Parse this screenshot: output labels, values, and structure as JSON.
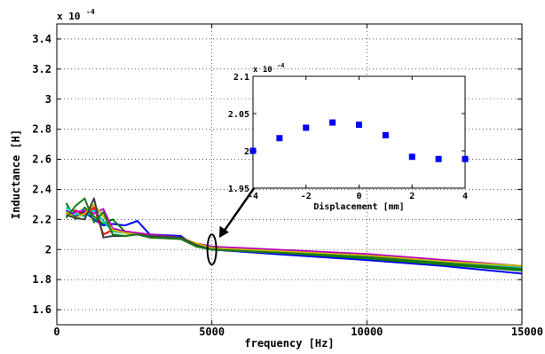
{
  "chart_data": [
    {
      "type": "line",
      "xlabel": "frequency [Hz]",
      "ylabel": "Inductance [H]",
      "exponent_label": "x 10",
      "exponent_power": "-4",
      "xlim": [
        0,
        15000
      ],
      "ylim": [
        1.5,
        3.5
      ],
      "xticks": [
        0,
        5000,
        10000,
        15000
      ],
      "xtick_labels": [
        "0",
        "5000",
        "10000",
        "15000"
      ],
      "yticks": [
        1.6,
        1.8,
        2.0,
        2.2,
        2.4,
        2.6,
        2.8,
        3.0,
        3.2,
        3.4
      ],
      "ytick_labels": [
        "1.6",
        "1.8",
        "2",
        "2.2",
        "2.4",
        "2.6",
        "2.8",
        "3",
        "3.2",
        "3.4"
      ],
      "grid": true,
      "series": [
        {
          "color": "#0000ff",
          "x": [
            300,
            600,
            900,
            1200,
            1500,
            1800,
            2200,
            2600,
            3000,
            4000,
            4500,
            5000,
            7000,
            10000,
            12500,
            15000
          ],
          "y": [
            2.26,
            2.22,
            2.25,
            2.2,
            2.16,
            2.17,
            2.16,
            2.19,
            2.1,
            2.09,
            2.02,
            2.0,
            1.97,
            1.93,
            1.89,
            1.84
          ]
        },
        {
          "color": "#008000",
          "x": [
            300,
            600,
            900,
            1200,
            1500,
            1800,
            2200,
            2600,
            3000,
            4000,
            4500,
            5000,
            7000,
            10000,
            12500,
            15000
          ],
          "y": [
            2.31,
            2.2,
            2.28,
            2.22,
            2.17,
            2.2,
            2.12,
            2.1,
            2.08,
            2.07,
            2.02,
            2.0,
            1.98,
            1.94,
            1.9,
            1.86
          ]
        },
        {
          "color": "#ff0000",
          "x": [
            300,
            600,
            900,
            1200,
            1500,
            1800,
            2200,
            2600,
            3000,
            4000,
            4500,
            5000,
            7000,
            10000,
            12500,
            15000
          ],
          "y": [
            2.24,
            2.26,
            2.23,
            2.28,
            2.1,
            2.13,
            2.12,
            2.11,
            2.09,
            2.07,
            2.03,
            2.01,
            1.99,
            1.95,
            1.91,
            1.88
          ]
        },
        {
          "color": "#00bfbf",
          "x": [
            300,
            600,
            900,
            1200,
            1500,
            1800,
            2200,
            2600,
            3000,
            4000,
            4500,
            5000,
            7000,
            10000,
            12500,
            15000
          ],
          "y": [
            2.28,
            2.24,
            2.22,
            2.26,
            2.19,
            2.12,
            2.11,
            2.1,
            2.09,
            2.08,
            2.03,
            2.01,
            1.99,
            1.96,
            1.92,
            1.88
          ]
        },
        {
          "color": "#bf00bf",
          "x": [
            300,
            600,
            900,
            1200,
            1500,
            1800,
            2200,
            2600,
            3000,
            4000,
            4500,
            5000,
            7000,
            10000,
            12500,
            15000
          ],
          "y": [
            2.22,
            2.25,
            2.26,
            2.24,
            2.27,
            2.14,
            2.12,
            2.11,
            2.1,
            2.08,
            2.04,
            2.02,
            2.0,
            1.97,
            1.93,
            1.89
          ]
        },
        {
          "color": "#bfbf00",
          "x": [
            300,
            600,
            900,
            1200,
            1500,
            1800,
            2200,
            2600,
            3000,
            4000,
            4500,
            5000,
            7000,
            10000,
            12500,
            15000
          ],
          "y": [
            2.25,
            2.21,
            2.24,
            2.3,
            2.22,
            2.13,
            2.11,
            2.1,
            2.09,
            2.08,
            2.04,
            2.01,
            1.99,
            1.96,
            1.92,
            1.89
          ]
        },
        {
          "color": "#404040",
          "x": [
            300,
            600,
            900,
            1200,
            1500,
            1800,
            2200,
            2600,
            3000,
            4000,
            4500,
            5000,
            7000,
            10000,
            12500,
            15000
          ],
          "y": [
            2.23,
            2.21,
            2.2,
            2.34,
            2.08,
            2.09,
            2.09,
            2.1,
            2.09,
            2.08,
            2.03,
            2.0,
            1.98,
            1.95,
            1.91,
            1.87
          ]
        },
        {
          "color": "#1a7a1a",
          "x": [
            300,
            600,
            900,
            1200,
            1500,
            1800,
            2200,
            2600,
            3000,
            4000,
            4500,
            5000,
            7000,
            10000,
            12500,
            15000
          ],
          "y": [
            2.21,
            2.29,
            2.34,
            2.18,
            2.25,
            2.1,
            2.09,
            2.1,
            2.08,
            2.07,
            2.02,
            2.0,
            1.98,
            1.95,
            1.91,
            1.87
          ]
        }
      ]
    },
    {
      "type": "scatter",
      "xlabel": "Displacement [mm]",
      "ylabel": "",
      "exponent_label": "x 10",
      "exponent_power": "-4",
      "xlim": [
        -4,
        4
      ],
      "ylim": [
        1.95,
        2.1
      ],
      "xticks": [
        -4,
        -2,
        0,
        2,
        4
      ],
      "xtick_labels": [
        "-4",
        "-2",
        "0",
        "2",
        "4"
      ],
      "yticks": [
        1.95,
        2.0,
        2.05,
        2.1
      ],
      "ytick_labels": [
        "1.95",
        "2",
        "2.05",
        "2.1"
      ],
      "grid": false,
      "marker_color": "#0000ff",
      "x": [
        -4,
        -3,
        -2,
        -1,
        0,
        1,
        2,
        3,
        4
      ],
      "y": [
        2.0,
        2.017,
        2.031,
        2.038,
        2.035,
        2.021,
        1.992,
        1.989,
        1.989
      ]
    }
  ]
}
